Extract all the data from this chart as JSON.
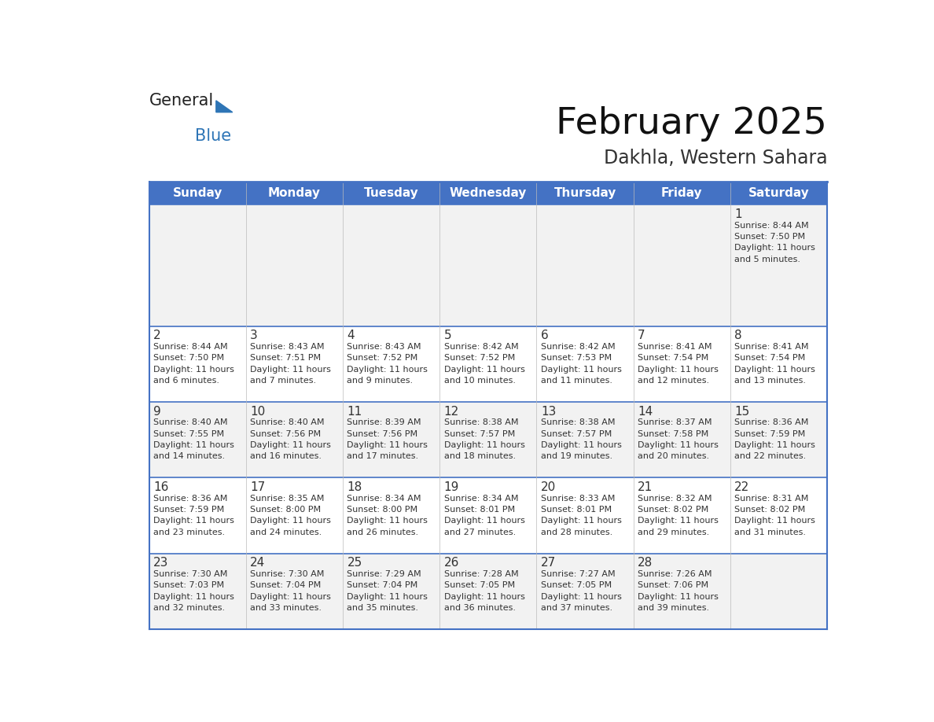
{
  "title": "February 2025",
  "subtitle": "Dakhla, Western Sahara",
  "header_bg": "#4472C4",
  "header_text_color": "#FFFFFF",
  "days_of_week": [
    "Sunday",
    "Monday",
    "Tuesday",
    "Wednesday",
    "Thursday",
    "Friday",
    "Saturday"
  ],
  "bg_color": "#FFFFFF",
  "row_bg_colors": [
    "#F2F2F2",
    "#FFFFFF",
    "#F2F2F2",
    "#FFFFFF",
    "#F2F2F2"
  ],
  "border_color": "#4472C4",
  "divider_color": "#4472C4",
  "text_color": "#333333",
  "logo_general_color": "#222222",
  "logo_blue_color": "#2E75B6",
  "calendar": [
    [
      null,
      null,
      null,
      null,
      null,
      null,
      {
        "day": 1,
        "sunrise": "8:44 AM",
        "sunset": "7:50 PM",
        "daylight_hours": 11,
        "daylight_minutes": 5
      }
    ],
    [
      {
        "day": 2,
        "sunrise": "8:44 AM",
        "sunset": "7:50 PM",
        "daylight_hours": 11,
        "daylight_minutes": 6
      },
      {
        "day": 3,
        "sunrise": "8:43 AM",
        "sunset": "7:51 PM",
        "daylight_hours": 11,
        "daylight_minutes": 7
      },
      {
        "day": 4,
        "sunrise": "8:43 AM",
        "sunset": "7:52 PM",
        "daylight_hours": 11,
        "daylight_minutes": 9
      },
      {
        "day": 5,
        "sunrise": "8:42 AM",
        "sunset": "7:52 PM",
        "daylight_hours": 11,
        "daylight_minutes": 10
      },
      {
        "day": 6,
        "sunrise": "8:42 AM",
        "sunset": "7:53 PM",
        "daylight_hours": 11,
        "daylight_minutes": 11
      },
      {
        "day": 7,
        "sunrise": "8:41 AM",
        "sunset": "7:54 PM",
        "daylight_hours": 11,
        "daylight_minutes": 12
      },
      {
        "day": 8,
        "sunrise": "8:41 AM",
        "sunset": "7:54 PM",
        "daylight_hours": 11,
        "daylight_minutes": 13
      }
    ],
    [
      {
        "day": 9,
        "sunrise": "8:40 AM",
        "sunset": "7:55 PM",
        "daylight_hours": 11,
        "daylight_minutes": 14
      },
      {
        "day": 10,
        "sunrise": "8:40 AM",
        "sunset": "7:56 PM",
        "daylight_hours": 11,
        "daylight_minutes": 16
      },
      {
        "day": 11,
        "sunrise": "8:39 AM",
        "sunset": "7:56 PM",
        "daylight_hours": 11,
        "daylight_minutes": 17
      },
      {
        "day": 12,
        "sunrise": "8:38 AM",
        "sunset": "7:57 PM",
        "daylight_hours": 11,
        "daylight_minutes": 18
      },
      {
        "day": 13,
        "sunrise": "8:38 AM",
        "sunset": "7:57 PM",
        "daylight_hours": 11,
        "daylight_minutes": 19
      },
      {
        "day": 14,
        "sunrise": "8:37 AM",
        "sunset": "7:58 PM",
        "daylight_hours": 11,
        "daylight_minutes": 20
      },
      {
        "day": 15,
        "sunrise": "8:36 AM",
        "sunset": "7:59 PM",
        "daylight_hours": 11,
        "daylight_minutes": 22
      }
    ],
    [
      {
        "day": 16,
        "sunrise": "8:36 AM",
        "sunset": "7:59 PM",
        "daylight_hours": 11,
        "daylight_minutes": 23
      },
      {
        "day": 17,
        "sunrise": "8:35 AM",
        "sunset": "8:00 PM",
        "daylight_hours": 11,
        "daylight_minutes": 24
      },
      {
        "day": 18,
        "sunrise": "8:34 AM",
        "sunset": "8:00 PM",
        "daylight_hours": 11,
        "daylight_minutes": 26
      },
      {
        "day": 19,
        "sunrise": "8:34 AM",
        "sunset": "8:01 PM",
        "daylight_hours": 11,
        "daylight_minutes": 27
      },
      {
        "day": 20,
        "sunrise": "8:33 AM",
        "sunset": "8:01 PM",
        "daylight_hours": 11,
        "daylight_minutes": 28
      },
      {
        "day": 21,
        "sunrise": "8:32 AM",
        "sunset": "8:02 PM",
        "daylight_hours": 11,
        "daylight_minutes": 29
      },
      {
        "day": 22,
        "sunrise": "8:31 AM",
        "sunset": "8:02 PM",
        "daylight_hours": 11,
        "daylight_minutes": 31
      }
    ],
    [
      {
        "day": 23,
        "sunrise": "7:30 AM",
        "sunset": "7:03 PM",
        "daylight_hours": 11,
        "daylight_minutes": 32
      },
      {
        "day": 24,
        "sunrise": "7:30 AM",
        "sunset": "7:04 PM",
        "daylight_hours": 11,
        "daylight_minutes": 33
      },
      {
        "day": 25,
        "sunrise": "7:29 AM",
        "sunset": "7:04 PM",
        "daylight_hours": 11,
        "daylight_minutes": 35
      },
      {
        "day": 26,
        "sunrise": "7:28 AM",
        "sunset": "7:05 PM",
        "daylight_hours": 11,
        "daylight_minutes": 36
      },
      {
        "day": 27,
        "sunrise": "7:27 AM",
        "sunset": "7:05 PM",
        "daylight_hours": 11,
        "daylight_minutes": 37
      },
      {
        "day": 28,
        "sunrise": "7:26 AM",
        "sunset": "7:06 PM",
        "daylight_hours": 11,
        "daylight_minutes": 39
      },
      null
    ]
  ]
}
